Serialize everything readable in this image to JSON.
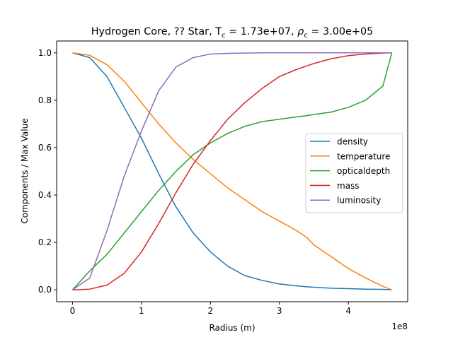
{
  "chart_data": {
    "type": "line",
    "title": {
      "prefix": "Hydrogen Core, ?? Star, T",
      "t_sub": "c",
      "t_value": " = 1.73e+07, ",
      "rho": "ρ",
      "rho_sub": "c",
      "rho_value": " = 3.00e+05"
    },
    "xlabel": "Radius (m)",
    "ylabel": "Components / Max Value",
    "x_offset_text": "1e8",
    "xlim": [
      -0.23,
      4.86
    ],
    "ylim": [
      -0.05,
      1.05
    ],
    "x_ticks": [
      0,
      1,
      2,
      3,
      4
    ],
    "x_tick_labels": [
      "0",
      "1",
      "2",
      "3",
      "4"
    ],
    "y_ticks": [
      0.0,
      0.2,
      0.4,
      0.6,
      0.8,
      1.0
    ],
    "y_tick_labels": [
      "0.0",
      "0.2",
      "0.4",
      "0.6",
      "0.8",
      "1.0"
    ],
    "grid": false,
    "legend_position": "center-right",
    "x": [
      0,
      0.25,
      0.5,
      0.75,
      1.0,
      1.25,
      1.5,
      1.75,
      2.0,
      2.25,
      2.5,
      2.75,
      3.0,
      3.25,
      3.4,
      3.5,
      3.75,
      4.0,
      4.25,
      4.5,
      4.63
    ],
    "series": [
      {
        "name": "density",
        "color": "#1f77b4",
        "values": [
          1.0,
          0.98,
          0.9,
          0.77,
          0.64,
          0.49,
          0.35,
          0.24,
          0.16,
          0.1,
          0.06,
          0.04,
          0.025,
          0.017,
          0.013,
          0.011,
          0.007,
          0.005,
          0.003,
          0.002,
          0.0
        ]
      },
      {
        "name": "temperature",
        "color": "#ff7f0e",
        "values": [
          1.0,
          0.99,
          0.95,
          0.88,
          0.79,
          0.7,
          0.62,
          0.55,
          0.49,
          0.43,
          0.38,
          0.33,
          0.29,
          0.25,
          0.22,
          0.19,
          0.14,
          0.09,
          0.05,
          0.015,
          0.0
        ]
      },
      {
        "name": "opticaldepth",
        "color": "#2ca02c",
        "values": [
          0.0,
          0.08,
          0.15,
          0.24,
          0.33,
          0.42,
          0.5,
          0.57,
          0.62,
          0.66,
          0.69,
          0.71,
          0.72,
          0.73,
          0.735,
          0.74,
          0.75,
          0.77,
          0.8,
          0.86,
          1.0
        ]
      },
      {
        "name": "mass",
        "color": "#d62728",
        "values": [
          0.0,
          0.003,
          0.02,
          0.07,
          0.16,
          0.28,
          0.41,
          0.53,
          0.63,
          0.72,
          0.79,
          0.85,
          0.9,
          0.93,
          0.945,
          0.955,
          0.975,
          0.988,
          0.995,
          0.999,
          1.0
        ]
      },
      {
        "name": "luminosity",
        "color": "#9467bd",
        "values": [
          0.0,
          0.05,
          0.25,
          0.48,
          0.67,
          0.84,
          0.94,
          0.98,
          0.995,
          0.998,
          0.999,
          1.0,
          1.0,
          1.0,
          1.0,
          1.0,
          1.0,
          1.0,
          1.0,
          1.0,
          1.0
        ]
      }
    ]
  }
}
